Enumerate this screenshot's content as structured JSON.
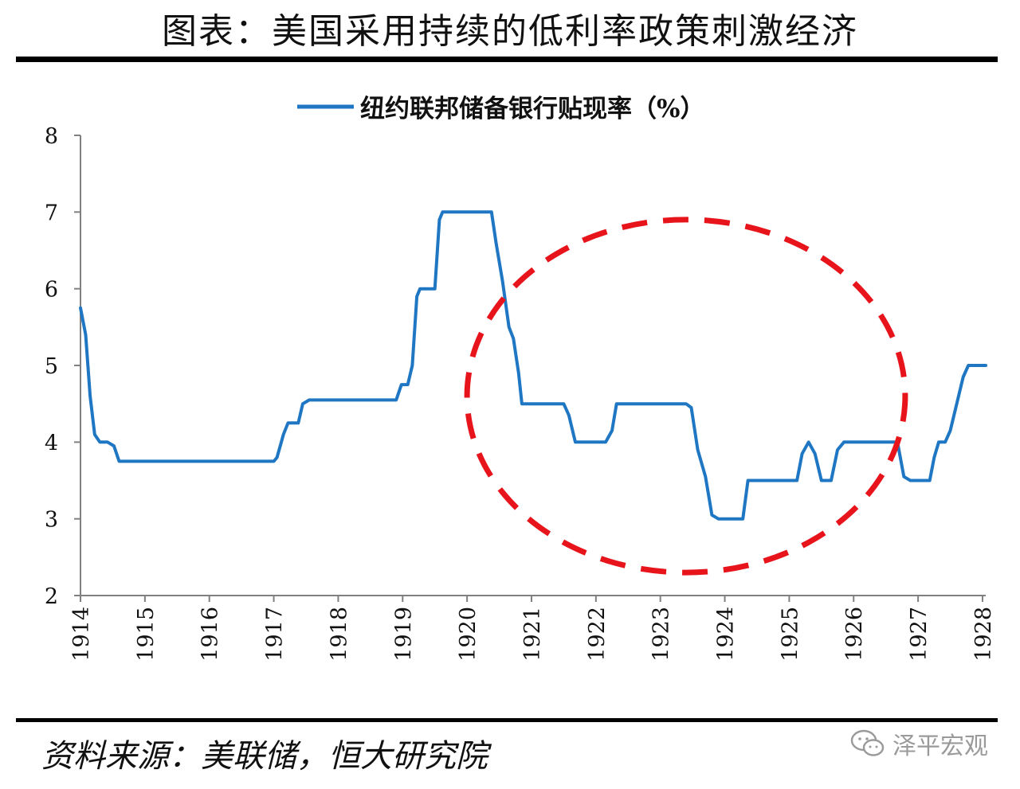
{
  "header": {
    "title": "图表：美国采用持续的低利率政策刺激经济"
  },
  "footer": {
    "source": "资料来源：美联储，恒大研究院",
    "watermark": "泽平宏观",
    "watermark_icon": "wechat-icon"
  },
  "colors": {
    "series": "#1f77c4",
    "annotation": "#e8141b",
    "axis": "#808080",
    "text": "#111111"
  },
  "chart_data": {
    "type": "line",
    "title": "",
    "xlabel": "",
    "ylabel": "",
    "xlim": [
      1914,
      1928.05
    ],
    "ylim": [
      2,
      8
    ],
    "x_ticks": [
      "1914",
      "1915",
      "1916",
      "1917",
      "1918",
      "1919",
      "1920",
      "1921",
      "1922",
      "1923",
      "1924",
      "1925",
      "1926",
      "1927",
      "1928"
    ],
    "y_ticks": [
      "2",
      "3",
      "4",
      "5",
      "6",
      "7",
      "8"
    ],
    "legend_position": "top",
    "grid": false,
    "annotations": [
      {
        "type": "dashed-ellipse",
        "x_range": [
          1920,
          1926.8
        ],
        "y_range": [
          2.3,
          6.9
        ],
        "color": "#e8141b"
      }
    ],
    "series": [
      {
        "name": "纽约联邦储备银行贴现率（%）",
        "points": [
          [
            1914.0,
            5.75
          ],
          [
            1914.08,
            5.4
          ],
          [
            1914.15,
            4.6
          ],
          [
            1914.22,
            4.1
          ],
          [
            1914.3,
            4.0
          ],
          [
            1914.42,
            4.0
          ],
          [
            1914.52,
            3.95
          ],
          [
            1914.6,
            3.75
          ],
          [
            1914.7,
            3.75
          ],
          [
            1915.0,
            3.75
          ],
          [
            1916.0,
            3.75
          ],
          [
            1917.0,
            3.75
          ],
          [
            1917.05,
            3.8
          ],
          [
            1917.15,
            4.1
          ],
          [
            1917.22,
            4.25
          ],
          [
            1917.3,
            4.25
          ],
          [
            1917.38,
            4.25
          ],
          [
            1917.45,
            4.5
          ],
          [
            1917.55,
            4.55
          ],
          [
            1918.0,
            4.55
          ],
          [
            1918.9,
            4.55
          ],
          [
            1918.98,
            4.75
          ],
          [
            1919.08,
            4.75
          ],
          [
            1919.15,
            5.0
          ],
          [
            1919.22,
            5.9
          ],
          [
            1919.27,
            6.0
          ],
          [
            1919.35,
            6.0
          ],
          [
            1919.5,
            6.0
          ],
          [
            1919.57,
            6.9
          ],
          [
            1919.62,
            7.0
          ],
          [
            1920.0,
            7.0
          ],
          [
            1920.38,
            7.0
          ],
          [
            1920.45,
            6.6
          ],
          [
            1920.55,
            6.1
          ],
          [
            1920.65,
            5.5
          ],
          [
            1920.72,
            5.35
          ],
          [
            1920.8,
            4.9
          ],
          [
            1920.85,
            4.5
          ],
          [
            1921.0,
            4.5
          ],
          [
            1921.5,
            4.5
          ],
          [
            1921.58,
            4.35
          ],
          [
            1921.68,
            4.0
          ],
          [
            1921.8,
            4.0
          ],
          [
            1922.0,
            4.0
          ],
          [
            1922.15,
            4.0
          ],
          [
            1922.25,
            4.15
          ],
          [
            1922.32,
            4.5
          ],
          [
            1922.4,
            4.5
          ],
          [
            1923.0,
            4.5
          ],
          [
            1923.4,
            4.5
          ],
          [
            1923.48,
            4.45
          ],
          [
            1923.58,
            3.9
          ],
          [
            1923.7,
            3.55
          ],
          [
            1923.8,
            3.05
          ],
          [
            1923.9,
            3.0
          ],
          [
            1924.0,
            3.0
          ],
          [
            1924.28,
            3.0
          ],
          [
            1924.36,
            3.5
          ],
          [
            1924.45,
            3.5
          ],
          [
            1925.0,
            3.5
          ],
          [
            1925.12,
            3.5
          ],
          [
            1925.2,
            3.85
          ],
          [
            1925.3,
            4.0
          ],
          [
            1925.4,
            3.85
          ],
          [
            1925.5,
            3.5
          ],
          [
            1925.65,
            3.5
          ],
          [
            1925.75,
            3.9
          ],
          [
            1925.85,
            4.0
          ],
          [
            1926.0,
            4.0
          ],
          [
            1926.6,
            4.0
          ],
          [
            1926.68,
            4.0
          ],
          [
            1926.78,
            3.55
          ],
          [
            1926.88,
            3.5
          ],
          [
            1927.0,
            3.5
          ],
          [
            1927.18,
            3.5
          ],
          [
            1927.25,
            3.8
          ],
          [
            1927.32,
            4.0
          ],
          [
            1927.42,
            4.0
          ],
          [
            1927.5,
            4.15
          ],
          [
            1927.6,
            4.5
          ],
          [
            1927.7,
            4.85
          ],
          [
            1927.78,
            5.0
          ],
          [
            1928.05,
            5.0
          ]
        ]
      }
    ]
  }
}
